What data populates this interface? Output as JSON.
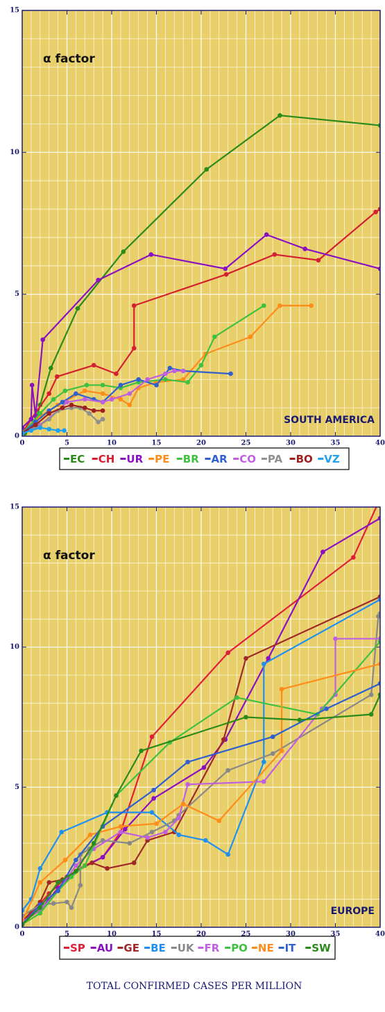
{
  "chart_data": [
    {
      "type": "line",
      "annotation": "α factor",
      "region": "SOUTH AMERICA",
      "xlim": [
        0,
        40
      ],
      "xticks": [
        0,
        5,
        10,
        15,
        20,
        25,
        30,
        35,
        40
      ],
      "ylim": [
        0,
        15
      ],
      "yticks": [
        0,
        5,
        10,
        15
      ],
      "grid": true,
      "series": [
        {
          "name": "EC",
          "color": "#2a8a1a",
          "x": [
            0.3,
            1.5,
            2,
            3.2,
            6.2,
            11.3,
            20.6,
            28.8,
            40
          ],
          "values": [
            0.1,
            0.5,
            1.1,
            2.4,
            4.5,
            6.5,
            9.4,
            11.3,
            10.95
          ]
        },
        {
          "name": "CH",
          "color": "#d42030",
          "x": [
            0,
            1,
            3,
            3.9,
            8,
            10.5,
            12.5,
            12.5,
            22.8,
            28.2,
            33.1,
            39.5,
            40
          ],
          "values": [
            0.1,
            0.6,
            1.5,
            2.1,
            2.5,
            2.2,
            3.1,
            4.6,
            5.7,
            6.4,
            6.2,
            7.9,
            8
          ]
        },
        {
          "name": "UR",
          "color": "#8a10c0",
          "x": [
            0,
            1,
            1.1,
            1.5,
            2.3,
            8.5,
            14.4,
            22.7,
            27.3,
            31.6,
            40
          ],
          "values": [
            0.3,
            0.6,
            1.8,
            0.7,
            3.4,
            5.5,
            6.4,
            5.9,
            7.1,
            6.6,
            5.9
          ]
        },
        {
          "name": "PE",
          "color": "#ff8c1a",
          "x": [
            0,
            2,
            4,
            7,
            9,
            11,
            12,
            13,
            15,
            18,
            20.5,
            25.5,
            28.8,
            32.3
          ],
          "values": [
            0.1,
            0.7,
            1.1,
            1.6,
            1.5,
            1.3,
            1.1,
            1.7,
            1.9,
            2.0,
            2.9,
            3.5,
            4.6,
            4.6
          ]
        },
        {
          "name": "BR",
          "color": "#40c040",
          "x": [
            0,
            2,
            3.5,
            4.8,
            7.2,
            9,
            11,
            13,
            16,
            18.5,
            20,
            21.5,
            27
          ],
          "values": [
            0.1,
            0.8,
            1.3,
            1.6,
            1.8,
            1.8,
            1.7,
            1.9,
            2.0,
            1.9,
            2.5,
            3.5,
            4.6
          ]
        },
        {
          "name": "AR",
          "color": "#3060d0",
          "x": [
            0,
            1.5,
            3,
            4.5,
            6,
            8,
            9,
            11,
            13,
            15,
            16.5,
            18,
            23.3
          ],
          "values": [
            0.1,
            0.5,
            0.9,
            1.2,
            1.5,
            1.3,
            1.2,
            1.8,
            2.0,
            1.8,
            2.4,
            2.3,
            2.2
          ]
        },
        {
          "name": "CO",
          "color": "#c060e0",
          "x": [
            0,
            2,
            4,
            5,
            7,
            9,
            10,
            12,
            14,
            16,
            17,
            18
          ],
          "values": [
            0.1,
            0.4,
            0.9,
            1.2,
            1.3,
            1.2,
            1.3,
            1.5,
            2.0,
            2.2,
            2.3,
            2.3
          ]
        },
        {
          "name": "PA",
          "color": "#909090",
          "x": [
            0,
            1.5,
            3,
            4,
            5.5,
            6.5,
            7.5,
            8.5,
            9
          ],
          "values": [
            0.1,
            0.3,
            0.6,
            0.9,
            1.0,
            1.0,
            0.8,
            0.5,
            0.6
          ]
        },
        {
          "name": "BO",
          "color": "#a02020",
          "x": [
            0,
            1.5,
            3,
            4.5,
            5.5,
            7,
            8,
            9
          ],
          "values": [
            0.1,
            0.4,
            0.8,
            1.0,
            1.1,
            1.0,
            0.9,
            0.9
          ]
        },
        {
          "name": "VZ",
          "color": "#20a0f0",
          "x": [
            0,
            1,
            2,
            3,
            4,
            4.7
          ],
          "values": [
            0.1,
            0.2,
            0.3,
            0.25,
            0.2,
            0.2
          ]
        }
      ]
    },
    {
      "type": "line",
      "annotation": "α factor",
      "region": "EUROPE",
      "xlabel": "TOTAL CONFIRMED CASES PER MILLION",
      "xlim": [
        0,
        40
      ],
      "xticks": [
        0,
        5,
        10,
        15,
        20,
        25,
        30,
        35,
        40
      ],
      "ylim": [
        0,
        15
      ],
      "yticks": [
        0,
        5,
        10,
        15
      ],
      "grid": true,
      "series": [
        {
          "name": "SP",
          "color": "#e0203a",
          "x": [
            0,
            1,
            3,
            5,
            7,
            9,
            11,
            14.5,
            23,
            37,
            40
          ],
          "values": [
            0.1,
            0.5,
            1.2,
            1.8,
            2.2,
            2.5,
            3.4,
            6.8,
            9.8,
            13.2,
            15.3
          ]
        },
        {
          "name": "AU",
          "color": "#8a10c0",
          "x": [
            0,
            2,
            4,
            6,
            9,
            11.5,
            14.7,
            20.3,
            22.7,
            27.5,
            33.6,
            40
          ],
          "values": [
            0.2,
            0.6,
            1.4,
            2.0,
            2.5,
            3.5,
            4.6,
            5.7,
            6.7,
            9.6,
            13.4,
            14.6
          ]
        },
        {
          "name": "GE",
          "color": "#a02828",
          "x": [
            0,
            2,
            3,
            4.5,
            6,
            7.8,
            9.5,
            12.5,
            14,
            17,
            22.5,
            25,
            40
          ],
          "values": [
            0.2,
            0.9,
            1.6,
            1.7,
            2.0,
            2.3,
            2.1,
            2.3,
            3.1,
            3.4,
            6.7,
            9.6,
            11.8
          ]
        },
        {
          "name": "BE",
          "color": "#2090f0",
          "x": [
            0,
            1,
            2,
            4.4,
            9.5,
            14.5,
            17.5,
            20.5,
            23,
            27,
            27,
            40
          ],
          "values": [
            0.6,
            1.0,
            2.1,
            3.4,
            4.1,
            4.1,
            3.3,
            3.1,
            2.6,
            5.9,
            9.4,
            11.7
          ]
        },
        {
          "name": "UK",
          "color": "#888888",
          "x": [
            0,
            2,
            3.5,
            5,
            5.5,
            6.5,
            6.5,
            7.5,
            9,
            12,
            14.5,
            17,
            17.5,
            23,
            28,
            39,
            39.8,
            40
          ],
          "values": [
            0.4,
            0.8,
            0.85,
            0.9,
            0.7,
            1.5,
            2.6,
            2.8,
            3.1,
            3.0,
            3.4,
            3.8,
            4.0,
            5.6,
            6.2,
            8.3,
            11.1,
            11.2
          ]
        },
        {
          "name": "FR",
          "color": "#c060e0",
          "x": [
            0,
            2,
            4,
            6,
            8,
            11,
            14,
            16,
            17.5,
            18.5,
            27,
            33.5,
            35,
            35,
            40
          ],
          "values": [
            0.2,
            0.6,
            1.3,
            2.2,
            2.8,
            3.4,
            3.2,
            3.4,
            3.9,
            5.1,
            5.2,
            7.8,
            8.3,
            10.3,
            10.3
          ]
        },
        {
          "name": "PO",
          "color": "#40c040",
          "x": [
            0,
            2,
            4,
            5.5,
            7,
            10.5,
            16.5,
            24,
            33,
            40
          ],
          "values": [
            0.1,
            0.5,
            1.3,
            1.8,
            2.2,
            4.7,
            6.6,
            8.2,
            7.6,
            10.2
          ]
        },
        {
          "name": "NE",
          "color": "#ff8c1a",
          "x": [
            0,
            2,
            4.8,
            7.6,
            11,
            15,
            18,
            22,
            29,
            29,
            40
          ],
          "values": [
            0.2,
            1.6,
            2.4,
            3.3,
            3.6,
            3.7,
            4.4,
            3.8,
            6.3,
            8.5,
            9.4
          ]
        },
        {
          "name": "IT",
          "color": "#3060d0",
          "x": [
            0,
            2,
            4,
            6,
            9,
            14.7,
            18.5,
            28,
            34,
            40
          ],
          "values": [
            0.1,
            0.8,
            1.3,
            2.4,
            3.6,
            4.9,
            5.9,
            6.8,
            7.8,
            8.7
          ]
        },
        {
          "name": "SW",
          "color": "#2a8a1a",
          "x": [
            0,
            2,
            4,
            6,
            8,
            10.5,
            13.3,
            25,
            31,
            39,
            40
          ],
          "values": [
            0.1,
            0.7,
            1.6,
            2.0,
            3.0,
            4.7,
            6.3,
            7.5,
            7.4,
            7.6,
            8.3
          ]
        }
      ]
    }
  ]
}
